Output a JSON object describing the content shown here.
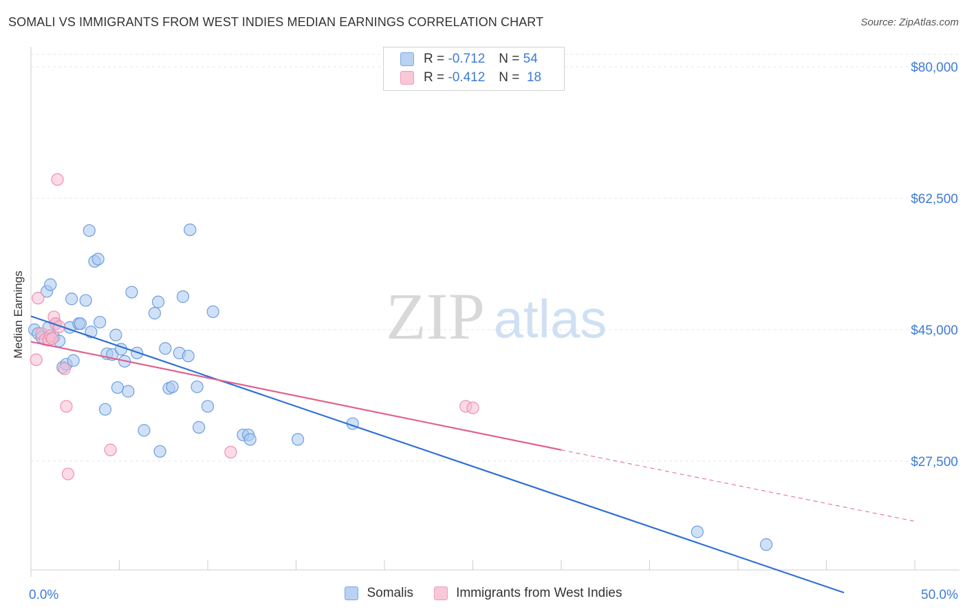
{
  "title": "SOMALI VS IMMIGRANTS FROM WEST INDIES MEDIAN EARNINGS CORRELATION CHART",
  "source": "Source: ZipAtlas.com",
  "watermark": {
    "zip": "ZIP",
    "atlas": "atlas"
  },
  "legend": {
    "rows": [
      {
        "r_label": "R =",
        "r_value": "-0.712",
        "n_label": "N =",
        "n_value": "54"
      },
      {
        "r_label": "R =",
        "r_value": "-0.412",
        "n_label": "N =",
        "n_value": "18"
      }
    ]
  },
  "bottom_legend": {
    "somalis": "Somalis",
    "west_indies": "Immigrants from West Indies"
  },
  "chart_data": {
    "type": "scatter",
    "title": "SOMALI VS IMMIGRANTS FROM WEST INDIES MEDIAN EARNINGS CORRELATION CHART",
    "xlabel": "",
    "ylabel": "Median Earnings",
    "xlim": [
      0,
      50
    ],
    "ylim": [
      11000,
      84000
    ],
    "x_tick_labels": [
      {
        "value": 0,
        "label": "0.0%"
      },
      {
        "value": 50,
        "label": "50.0%"
      }
    ],
    "y_ticks": [
      {
        "value": 27500,
        "label": "$27,500"
      },
      {
        "value": 45000,
        "label": "$45,000"
      },
      {
        "value": 62500,
        "label": "$62,500"
      },
      {
        "value": 80000,
        "label": "$80,000"
      }
    ],
    "grid": true,
    "colors": {
      "somali_fill": "#a9c8f0",
      "somali_stroke": "#6a9edf",
      "somali_line": "#2f6fd6",
      "wi_fill": "#f7bed0",
      "wi_stroke": "#ee8fb0",
      "wi_line": "#e0608d",
      "tick_label": "#3d7bd6"
    },
    "series": [
      {
        "name": "Somalis",
        "points": [
          [
            0.2,
            45000
          ],
          [
            0.4,
            44500
          ],
          [
            0.6,
            44000
          ],
          [
            0.9,
            50100
          ],
          [
            1.0,
            45300
          ],
          [
            1.1,
            51000
          ],
          [
            1.3,
            44000
          ],
          [
            1.4,
            45800
          ],
          [
            1.6,
            43500
          ],
          [
            1.8,
            40000
          ],
          [
            2.0,
            40400
          ],
          [
            2.2,
            45300
          ],
          [
            2.3,
            49100
          ],
          [
            2.4,
            40900
          ],
          [
            2.7,
            45800
          ],
          [
            2.8,
            45800
          ],
          [
            3.1,
            48900
          ],
          [
            3.3,
            58200
          ],
          [
            3.4,
            44700
          ],
          [
            3.6,
            54100
          ],
          [
            3.8,
            54400
          ],
          [
            3.9,
            46000
          ],
          [
            4.2,
            34400
          ],
          [
            4.3,
            41800
          ],
          [
            4.6,
            41700
          ],
          [
            4.8,
            44300
          ],
          [
            4.9,
            37300
          ],
          [
            5.1,
            42400
          ],
          [
            5.3,
            40800
          ],
          [
            5.5,
            36800
          ],
          [
            5.7,
            50000
          ],
          [
            6.0,
            41900
          ],
          [
            6.4,
            31600
          ],
          [
            7.0,
            47200
          ],
          [
            7.3,
            28800
          ],
          [
            7.2,
            48700
          ],
          [
            7.6,
            42500
          ],
          [
            7.8,
            37200
          ],
          [
            8.0,
            37400
          ],
          [
            8.4,
            41900
          ],
          [
            8.6,
            49400
          ],
          [
            8.9,
            41500
          ],
          [
            9.0,
            58300
          ],
          [
            9.4,
            37400
          ],
          [
            9.5,
            32000
          ],
          [
            10.0,
            34800
          ],
          [
            10.3,
            47400
          ],
          [
            12.0,
            31000
          ],
          [
            12.3,
            31000
          ],
          [
            12.4,
            30400
          ],
          [
            15.1,
            30400
          ],
          [
            18.2,
            32500
          ],
          [
            37.7,
            18100
          ],
          [
            41.6,
            16400
          ]
        ]
      },
      {
        "name": "Immigrants from West Indies",
        "points": [
          [
            0.3,
            41000
          ],
          [
            0.4,
            49200
          ],
          [
            0.6,
            44500
          ],
          [
            0.8,
            43700
          ],
          [
            1.0,
            43600
          ],
          [
            1.1,
            44200
          ],
          [
            1.2,
            43800
          ],
          [
            1.3,
            46700
          ],
          [
            1.4,
            45800
          ],
          [
            1.5,
            65000
          ],
          [
            1.6,
            45400
          ],
          [
            1.9,
            39800
          ],
          [
            2.0,
            34800
          ],
          [
            2.1,
            25800
          ],
          [
            4.5,
            29000
          ],
          [
            11.3,
            28700
          ],
          [
            24.6,
            34800
          ],
          [
            25.0,
            34600
          ]
        ]
      }
    ],
    "trendlines": [
      {
        "series": "Somalis",
        "x0": 0,
        "y0": 46800,
        "x1": 46.0,
        "y1": 10000,
        "style": "solid"
      },
      {
        "series": "Immigrants from West Indies",
        "x0": 0,
        "y0": 43400,
        "x1": 30.0,
        "y1": 29000,
        "style": "solid"
      },
      {
        "series": "Immigrants from West Indies",
        "x0": 30.0,
        "y0": 29000,
        "x1": 50.0,
        "y1": 19500,
        "style": "dashed"
      }
    ]
  }
}
